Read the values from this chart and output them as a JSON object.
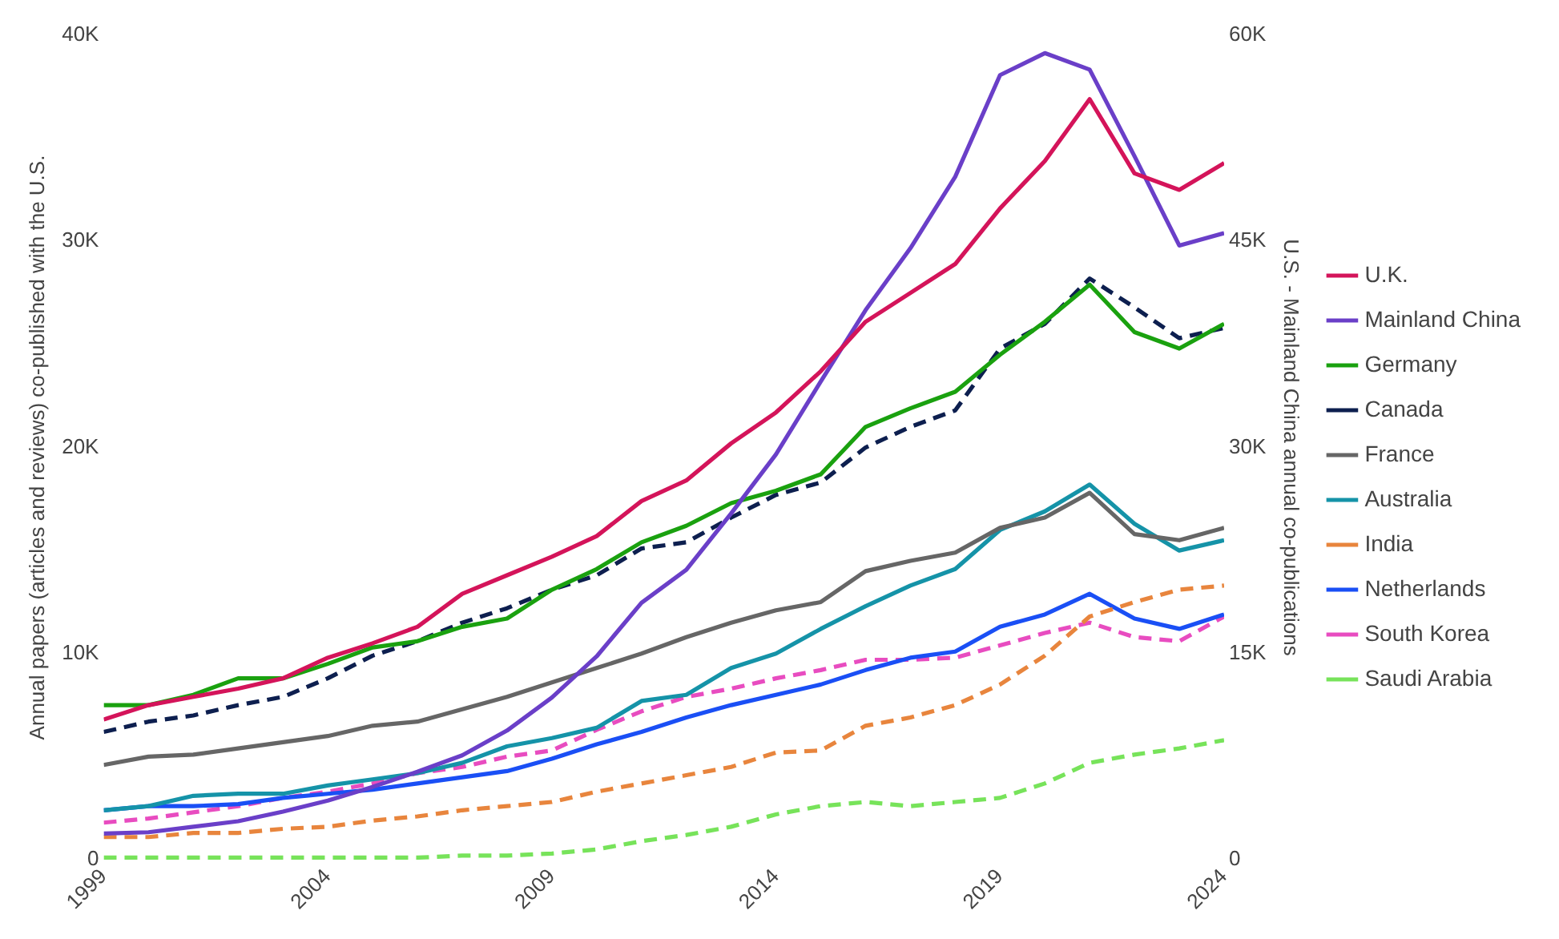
{
  "chart_data": {
    "type": "line",
    "ylabel": "Annual papers (articles and reviews) co-published with the U.S.",
    "y2label": "U.S. - Mainland China annual co-publications",
    "x": [
      1999,
      2000,
      2001,
      2002,
      2003,
      2004,
      2005,
      2006,
      2007,
      2008,
      2009,
      2010,
      2011,
      2012,
      2013,
      2014,
      2015,
      2016,
      2017,
      2018,
      2019,
      2020,
      2021,
      2022,
      2023,
      2024
    ],
    "xlim": [
      1999,
      2024
    ],
    "xticks": [
      1999,
      2004,
      2009,
      2014,
      2019,
      2024
    ],
    "ylim": [
      0,
      40000
    ],
    "yticks": [
      {
        "value": 0,
        "label": "0"
      },
      {
        "value": 10000,
        "label": "10K"
      },
      {
        "value": 20000,
        "label": "20K"
      },
      {
        "value": 30000,
        "label": "30K"
      },
      {
        "value": 40000,
        "label": "40K"
      }
    ],
    "y2lim": [
      0,
      60000
    ],
    "y2ticks": [
      {
        "value": 0,
        "label": "0"
      },
      {
        "value": 15000,
        "label": "15K"
      },
      {
        "value": 30000,
        "label": "30K"
      },
      {
        "value": 45000,
        "label": "45K"
      },
      {
        "value": 60000,
        "label": "60K"
      }
    ],
    "grid": false,
    "legend": "right",
    "marker": "none",
    "series": [
      {
        "name": "U.K.",
        "color": "#d4145a",
        "line_style": "solid",
        "values": [
          6800,
          7500,
          7900,
          8300,
          8800,
          9800,
          10500,
          11300,
          12900,
          13800,
          14700,
          15700,
          17400,
          18400,
          20200,
          21700,
          23700,
          26100,
          27500,
          28900,
          31600,
          33900,
          36900,
          33300,
          32500,
          33800
        ]
      },
      {
        "name": "Mainland China",
        "color": "#6a3fc8",
        "line_style": "solid",
        "axis": "y2",
        "values": [
          1900,
          2000,
          2400,
          2800,
          3500,
          4300,
          5300,
          6400,
          7600,
          9400,
          11800,
          14800,
          18700,
          21100,
          25200,
          29500,
          34800,
          40000,
          44500,
          49700,
          57100,
          58700,
          57500,
          51200,
          44700,
          45600
        ]
      },
      {
        "name": "Germany",
        "color": "#1aa10f",
        "line_style": "solid",
        "values": [
          7500,
          7500,
          8000,
          8800,
          8800,
          9500,
          10300,
          10600,
          11300,
          11700,
          13100,
          14100,
          15400,
          16200,
          17300,
          17900,
          18700,
          21000,
          21900,
          22700,
          24500,
          26100,
          27900,
          25600,
          24800,
          26000
        ]
      },
      {
        "name": "Canada",
        "color": "#0d1f4f",
        "line_style": "dashed",
        "values": [
          6200,
          6700,
          7000,
          7500,
          7900,
          8800,
          9900,
          10600,
          11500,
          12200,
          13100,
          13800,
          15100,
          15400,
          16600,
          17700,
          18300,
          20000,
          21000,
          21800,
          24800,
          26000,
          28200,
          26800,
          25300,
          25800
        ]
      },
      {
        "name": "France",
        "color": "#666666",
        "line_style": "solid",
        "values": [
          4600,
          5000,
          5100,
          5400,
          5700,
          6000,
          6500,
          6700,
          7300,
          7900,
          8600,
          9300,
          10000,
          10800,
          11500,
          12100,
          12500,
          14000,
          14500,
          14900,
          16100,
          16600,
          17800,
          15800,
          15500,
          16100
        ]
      },
      {
        "name": "Australia",
        "color": "#1593a8",
        "line_style": "solid",
        "values": [
          2400,
          2600,
          3100,
          3200,
          3200,
          3600,
          3900,
          4200,
          4700,
          5500,
          5900,
          6400,
          7700,
          8000,
          9300,
          10000,
          11200,
          12300,
          13300,
          14100,
          16000,
          16900,
          18200,
          16300,
          15000,
          15500
        ]
      },
      {
        "name": "India",
        "color": "#e8853d",
        "line_style": "dashed",
        "values": [
          1100,
          1100,
          1300,
          1300,
          1500,
          1600,
          1900,
          2100,
          2400,
          2600,
          2800,
          3300,
          3700,
          4100,
          4500,
          5200,
          5300,
          6500,
          6900,
          7500,
          8500,
          9900,
          11800,
          12500,
          13100,
          13300
        ]
      },
      {
        "name": "Netherlands",
        "color": "#1a4ff5",
        "line_style": "solid",
        "values": [
          2400,
          2600,
          2600,
          2700,
          3000,
          3200,
          3400,
          3700,
          4000,
          4300,
          4900,
          5600,
          6200,
          6900,
          7500,
          8000,
          8500,
          9200,
          9800,
          10100,
          11300,
          11900,
          12900,
          11700,
          11200,
          11900
        ]
      },
      {
        "name": "South Korea",
        "color": "#e84cc0",
        "line_style": "dashed",
        "values": [
          1800,
          2000,
          2300,
          2600,
          3000,
          3300,
          3700,
          4200,
          4500,
          5000,
          5300,
          6300,
          7200,
          7900,
          8300,
          8800,
          9200,
          9700,
          9700,
          9800,
          10400,
          11000,
          11500,
          10800,
          10600,
          11800
        ]
      },
      {
        "name": "Saudi Arabia",
        "color": "#77e35a",
        "line_style": "dashed",
        "values": [
          100,
          100,
          100,
          100,
          100,
          100,
          100,
          100,
          200,
          200,
          300,
          500,
          900,
          1200,
          1600,
          2200,
          2600,
          2800,
          2600,
          2800,
          3000,
          3700,
          4700,
          5100,
          5400,
          5800
        ]
      }
    ]
  }
}
